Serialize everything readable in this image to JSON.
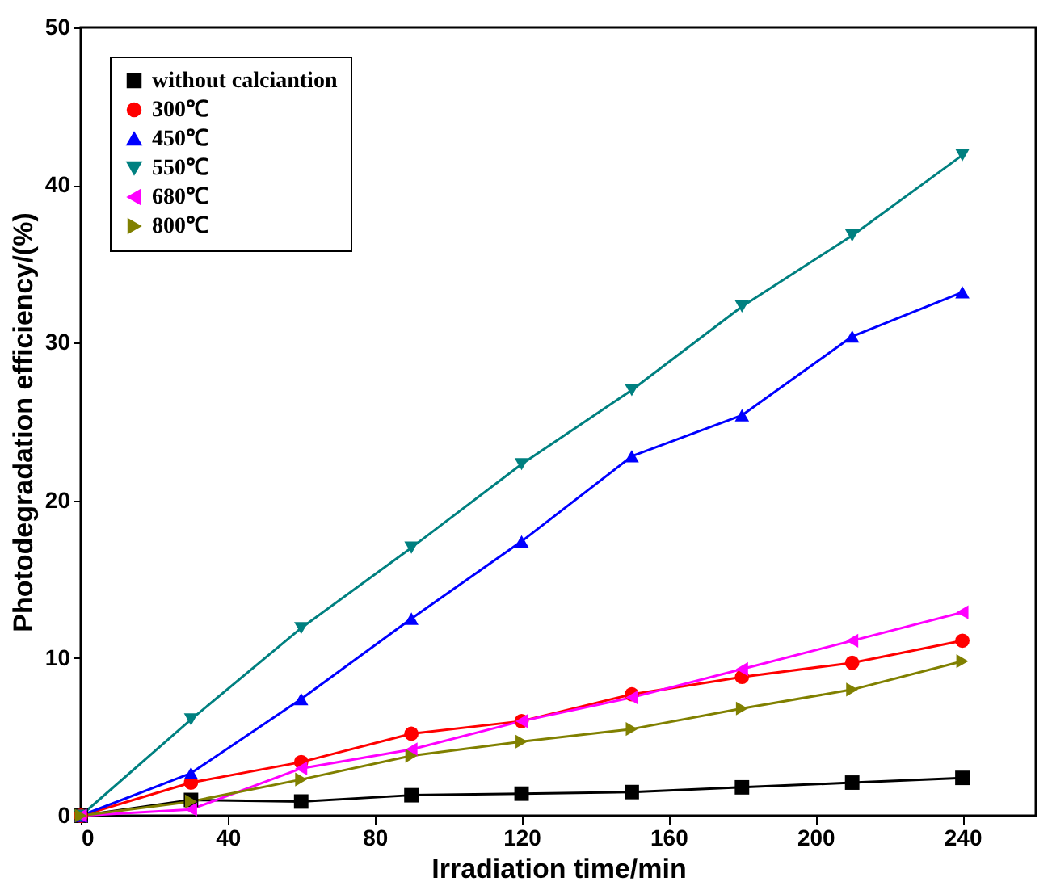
{
  "chart_data": {
    "type": "line",
    "xlabel": "Irradiation time/min",
    "ylabel": "Photodegradation efficiency/(%)",
    "x": [
      0,
      30,
      60,
      90,
      120,
      150,
      180,
      210,
      240
    ],
    "xlim": [
      0,
      260
    ],
    "xticks": [
      0,
      40,
      80,
      120,
      160,
      200,
      240
    ],
    "ylim": [
      0,
      50
    ],
    "yticks": [
      0,
      10,
      20,
      30,
      40,
      50
    ],
    "grid": false,
    "legend": "top left",
    "line_style": "solid",
    "series": [
      {
        "name": "without calciantion",
        "color": "#000000",
        "marker": "square",
        "values": [
          0,
          1.0,
          0.9,
          1.3,
          1.4,
          1.5,
          1.8,
          2.1,
          2.4
        ]
      },
      {
        "name": "300℃",
        "color": "#ff0000",
        "marker": "circle",
        "values": [
          0,
          2.1,
          3.4,
          5.2,
          6.0,
          7.7,
          8.8,
          9.7,
          11.1
        ]
      },
      {
        "name": "450℃",
        "color": "#0000ff",
        "marker": "triangle-up",
        "values": [
          0,
          2.7,
          7.4,
          12.5,
          17.4,
          22.8,
          25.4,
          30.4,
          33.2
        ]
      },
      {
        "name": "550℃",
        "color": "#008080",
        "marker": "triangle-down",
        "values": [
          0,
          6.1,
          11.9,
          17.0,
          22.3,
          27.0,
          32.3,
          36.8,
          41.9
        ]
      },
      {
        "name": "680℃",
        "color": "#ff00ff",
        "marker": "triangle-left",
        "values": [
          0,
          0.4,
          3.0,
          4.2,
          6.0,
          7.5,
          9.3,
          11.1,
          12.9
        ]
      },
      {
        "name": "800℃",
        "color": "#808000",
        "marker": "triangle-right",
        "values": [
          0,
          0.9,
          2.3,
          3.8,
          4.7,
          5.5,
          6.8,
          8.0,
          9.8
        ]
      }
    ]
  }
}
